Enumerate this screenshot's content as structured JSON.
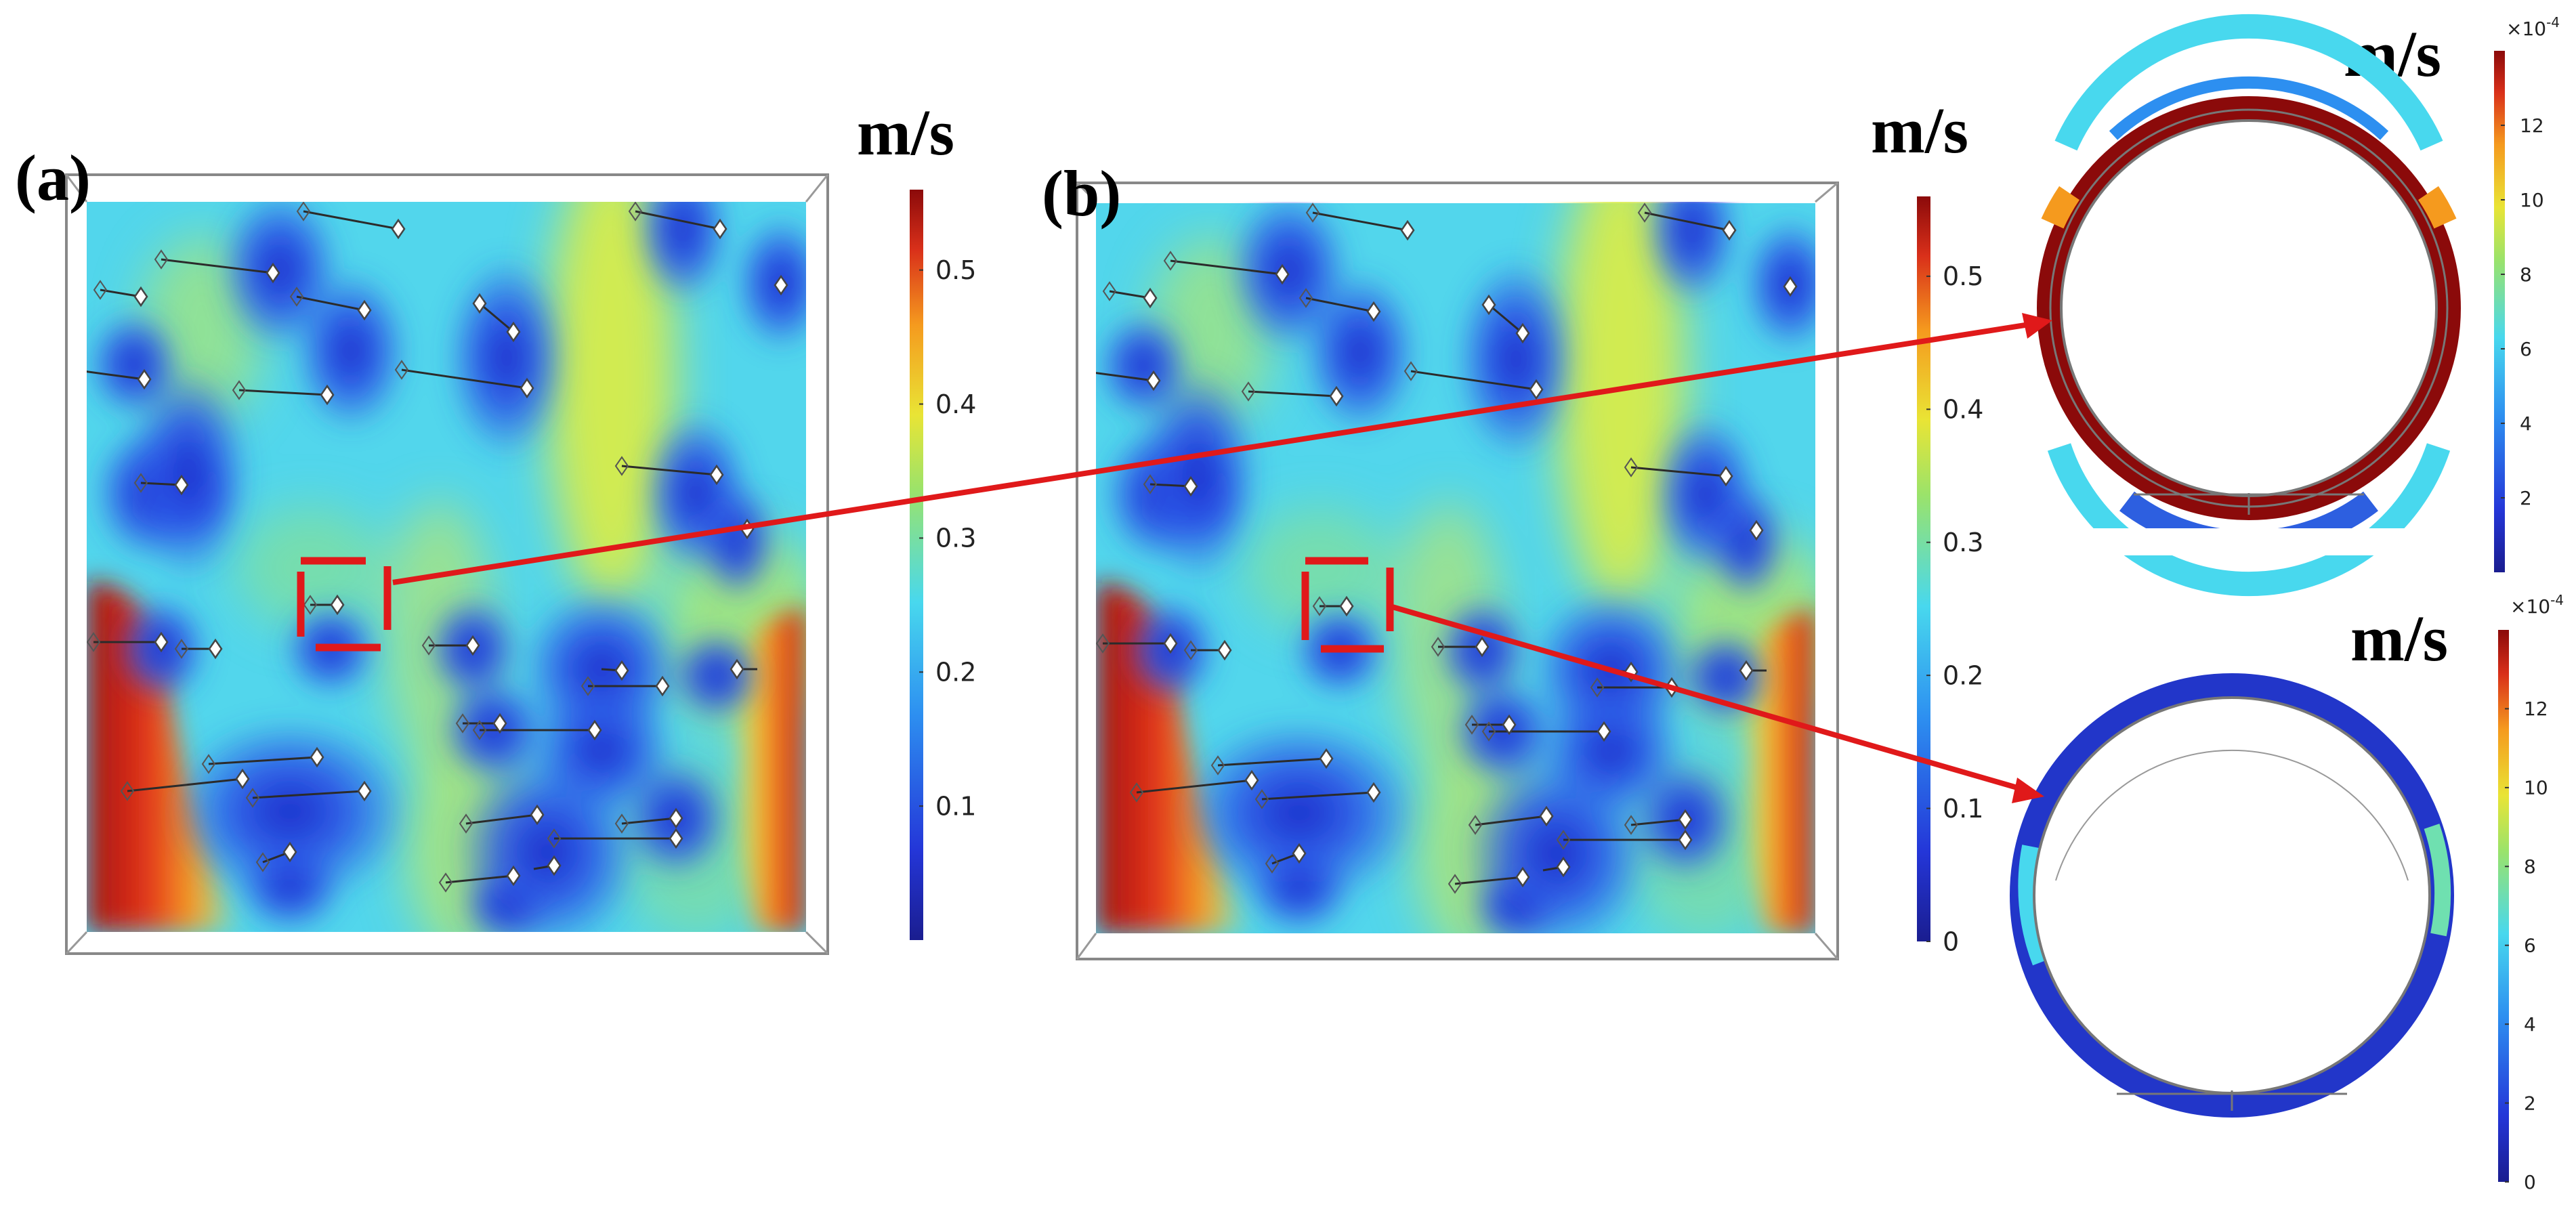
{
  "panels": [
    {
      "label": "(a)",
      "unit": "m/s",
      "ticks": [
        "0.5",
        "0.4",
        "0.3",
        "0.2",
        "0.1"
      ],
      "tick_values": [
        0.5,
        0.4,
        0.3,
        0.2,
        0.1
      ],
      "range": [
        0,
        0.56
      ]
    },
    {
      "label": "(b)",
      "unit": "m/s",
      "ticks": [
        "0.5",
        "0.4",
        "0.3",
        "0.2",
        "0.1",
        "0"
      ],
      "tick_values": [
        0.5,
        0.4,
        0.3,
        0.2,
        0.1,
        0
      ],
      "range": [
        0,
        0.56
      ]
    }
  ],
  "insets": [
    {
      "unit": "m/s",
      "multiplier": "×10",
      "exponent": "-4",
      "ticks": [
        "12",
        "10",
        "8",
        "6",
        "4",
        "2"
      ],
      "tick_values": [
        12,
        10,
        8,
        6,
        4,
        2
      ],
      "range": [
        0,
        14
      ]
    },
    {
      "unit": "m/s",
      "multiplier": "×10",
      "exponent": "-4",
      "ticks": [
        "12",
        "10",
        "8",
        "6",
        "4",
        "2",
        "0"
      ],
      "tick_values": [
        12,
        10,
        8,
        6,
        4,
        2,
        0
      ],
      "range": [
        0,
        14
      ]
    }
  ],
  "colors": {
    "highlight": "#e0191a",
    "cmap_low": "#1a1d8f",
    "cmap_mid": "#48d8ee",
    "cmap_high": "#8b0a0a"
  }
}
